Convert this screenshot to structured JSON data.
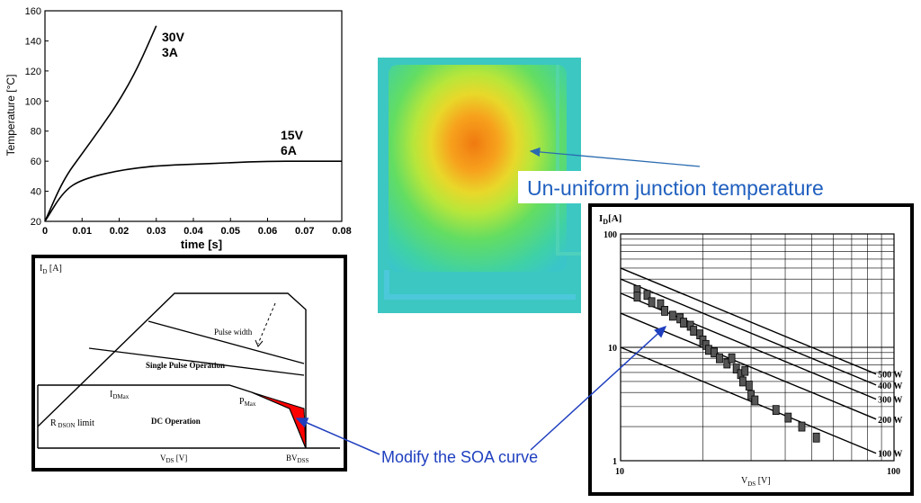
{
  "temp_chart": {
    "ylabel": "Temperature [°C]",
    "xlabel": "time [s]",
    "y_ticks": [
      "20",
      "40",
      "60",
      "80",
      "100",
      "120",
      "140",
      "160"
    ],
    "x_ticks": [
      "0",
      "0.01",
      "0.02",
      "0.03",
      "0.04",
      "0.05",
      "0.06",
      "0.07",
      "0.08"
    ],
    "curve_a_label_1": "30V",
    "curve_a_label_2": "3A",
    "curve_b_label_1": "15V",
    "curve_b_label_2": "6A"
  },
  "chart_data": [
    {
      "type": "line",
      "ylabel": "Temperature [°C]",
      "xlabel": "time [s]",
      "xlim": [
        0,
        0.08
      ],
      "ylim": [
        20,
        160
      ],
      "series": [
        {
          "name": "30V 3A",
          "x": [
            0,
            0.005,
            0.01,
            0.015,
            0.02,
            0.025,
            0.03
          ],
          "y": [
            20,
            48,
            65,
            82,
            100,
            122,
            150
          ]
        },
        {
          "name": "15V 6A",
          "x": [
            0,
            0.005,
            0.01,
            0.02,
            0.03,
            0.04,
            0.05,
            0.06,
            0.07,
            0.08
          ],
          "y": [
            20,
            40,
            48,
            54,
            57,
            58,
            59,
            60,
            60,
            60
          ]
        }
      ]
    },
    {
      "type": "line",
      "ylabel": "ID [A]",
      "xlabel": "VDS [V]",
      "xlim": [
        10,
        100
      ],
      "ylim": [
        1,
        100
      ],
      "log_scale": true,
      "series": [
        {
          "name": "500 W",
          "x": [
            10,
            60
          ],
          "y": [
            50,
            8.3
          ]
        },
        {
          "name": "400 W",
          "x": [
            10,
            60
          ],
          "y": [
            40,
            6.7
          ]
        },
        {
          "name": "300 W",
          "x": [
            10,
            60
          ],
          "y": [
            30,
            5
          ]
        },
        {
          "name": "200 W",
          "x": [
            10,
            60
          ],
          "y": [
            20,
            3.3
          ]
        },
        {
          "name": "100 W",
          "x": [
            10,
            60
          ],
          "y": [
            10,
            1.7
          ]
        }
      ]
    }
  ],
  "soa_diagram": {
    "id_label": "I",
    "id_sub": "D",
    "id_unit": " [A]",
    "pulse_width": "Pulse width",
    "single_pulse": "Single Pulse Operation",
    "idmax": "I",
    "idmax_sub": "DMax",
    "pmax": "P",
    "pmax_sub": "Max",
    "rdson": "R",
    "rdson_sub": " DSON",
    "rdson_suffix": "  limit",
    "dc_operation": "DC Operation",
    "vds": "V",
    "vds_sub": "DS",
    "vds_unit": " [V]",
    "bvdss": "BV",
    "bvdss_sub": "DSS"
  },
  "log_chart": {
    "id_label": "I",
    "id_sub": "D",
    "id_unit": "[A]",
    "y100": "100",
    "y10": "10",
    "y1": "1",
    "x10": "10",
    "x100": "100",
    "vds": "V",
    "vds_sub": "DS",
    "vds_unit": " [V]",
    "lines": [
      "500 W",
      "400 W",
      "300 W",
      "200 W",
      "100 W"
    ]
  },
  "annotations": {
    "thermal": "Un-uniform junction temperature",
    "soa": "Modify the SOA curve"
  },
  "colors": {
    "annotation_blue": "#1f5fbf",
    "annotation_line": "#2a6bb0",
    "soa_red": "#ff0000"
  }
}
